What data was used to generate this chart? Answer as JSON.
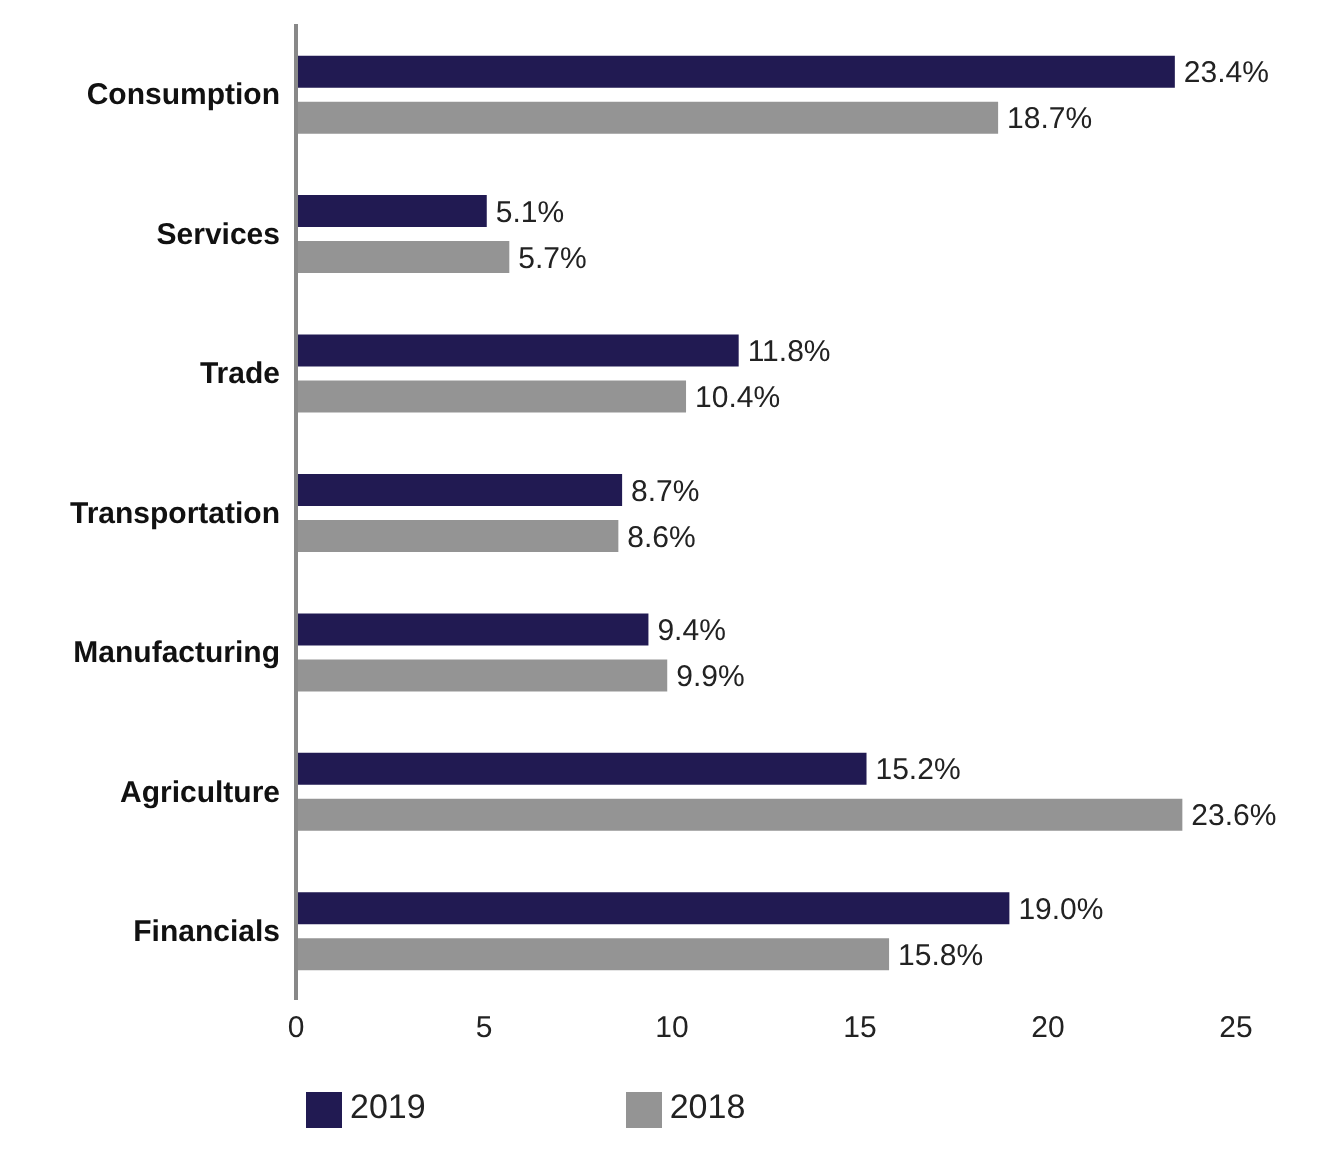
{
  "chart_data": {
    "type": "bar",
    "orientation": "horizontal",
    "categories": [
      "Consumption",
      "Services",
      "Trade",
      "Transportation",
      "Manufacturing",
      "Agriculture",
      "Financials"
    ],
    "series": [
      {
        "name": "2019",
        "color": "#211a52",
        "values": [
          23.4,
          5.1,
          11.8,
          8.7,
          9.4,
          15.2,
          19.0
        ],
        "value_labels": [
          "23.4%",
          "5.1%",
          "11.8%",
          "8.7%",
          "9.4%",
          "15.2%",
          "19.0%"
        ]
      },
      {
        "name": "2018",
        "color": "#949494",
        "values": [
          18.7,
          5.7,
          10.4,
          8.6,
          9.9,
          23.6,
          15.8
        ],
        "value_labels": [
          "18.7%",
          "5.7%",
          "10.4%",
          "8.6%",
          "9.9%",
          "23.6%",
          "15.8%"
        ]
      }
    ],
    "xlim": [
      0,
      25
    ],
    "xticks": [
      0,
      5,
      10,
      15,
      20,
      25
    ],
    "grid": false,
    "legend": "bottom left"
  }
}
